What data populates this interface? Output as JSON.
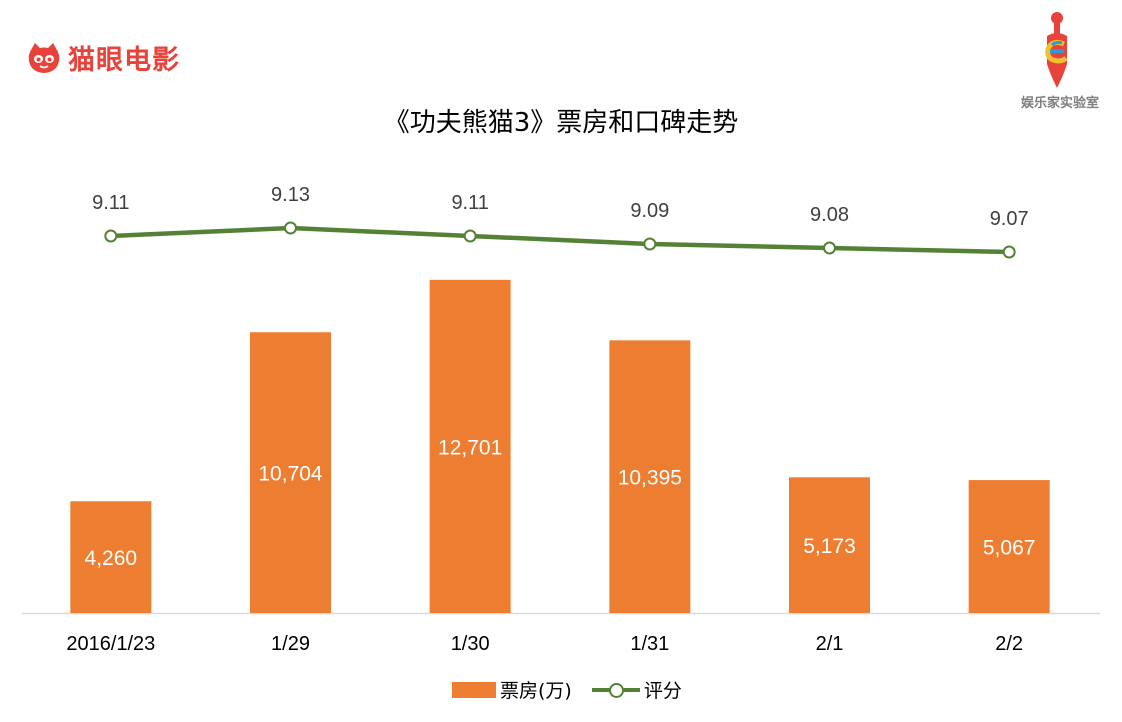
{
  "brand": {
    "name": "猫眼电影",
    "logo_icon": "cat-eye-icon",
    "color": "#e8423b"
  },
  "badge": {
    "text": "娱乐家实验室",
    "icon": "dropper-e-icon"
  },
  "colors": {
    "bar": "#ed7d31",
    "line": "#548235",
    "axis": "#d9d9d9"
  },
  "chart_data": {
    "type": "bar+line",
    "title": "《功夫熊猫3》票房和口碑走势",
    "categories": [
      "2016/1/23",
      "1/29",
      "1/30",
      "1/31",
      "2/1",
      "2/2"
    ],
    "series": [
      {
        "name": "票房(万)",
        "type": "bar",
        "values": [
          4260,
          10704,
          12701,
          10395,
          5173,
          5067
        ],
        "labels": [
          "4,260",
          "10,704",
          "12,701",
          "10,395",
          "5,173",
          "5,067"
        ]
      },
      {
        "name": "评分",
        "type": "line",
        "values": [
          9.11,
          9.13,
          9.11,
          9.09,
          9.08,
          9.07
        ],
        "labels": [
          "9.11",
          "9.13",
          "9.11",
          "9.09",
          "9.08",
          "9.07"
        ]
      }
    ],
    "legend": "bottom",
    "grid": false
  }
}
